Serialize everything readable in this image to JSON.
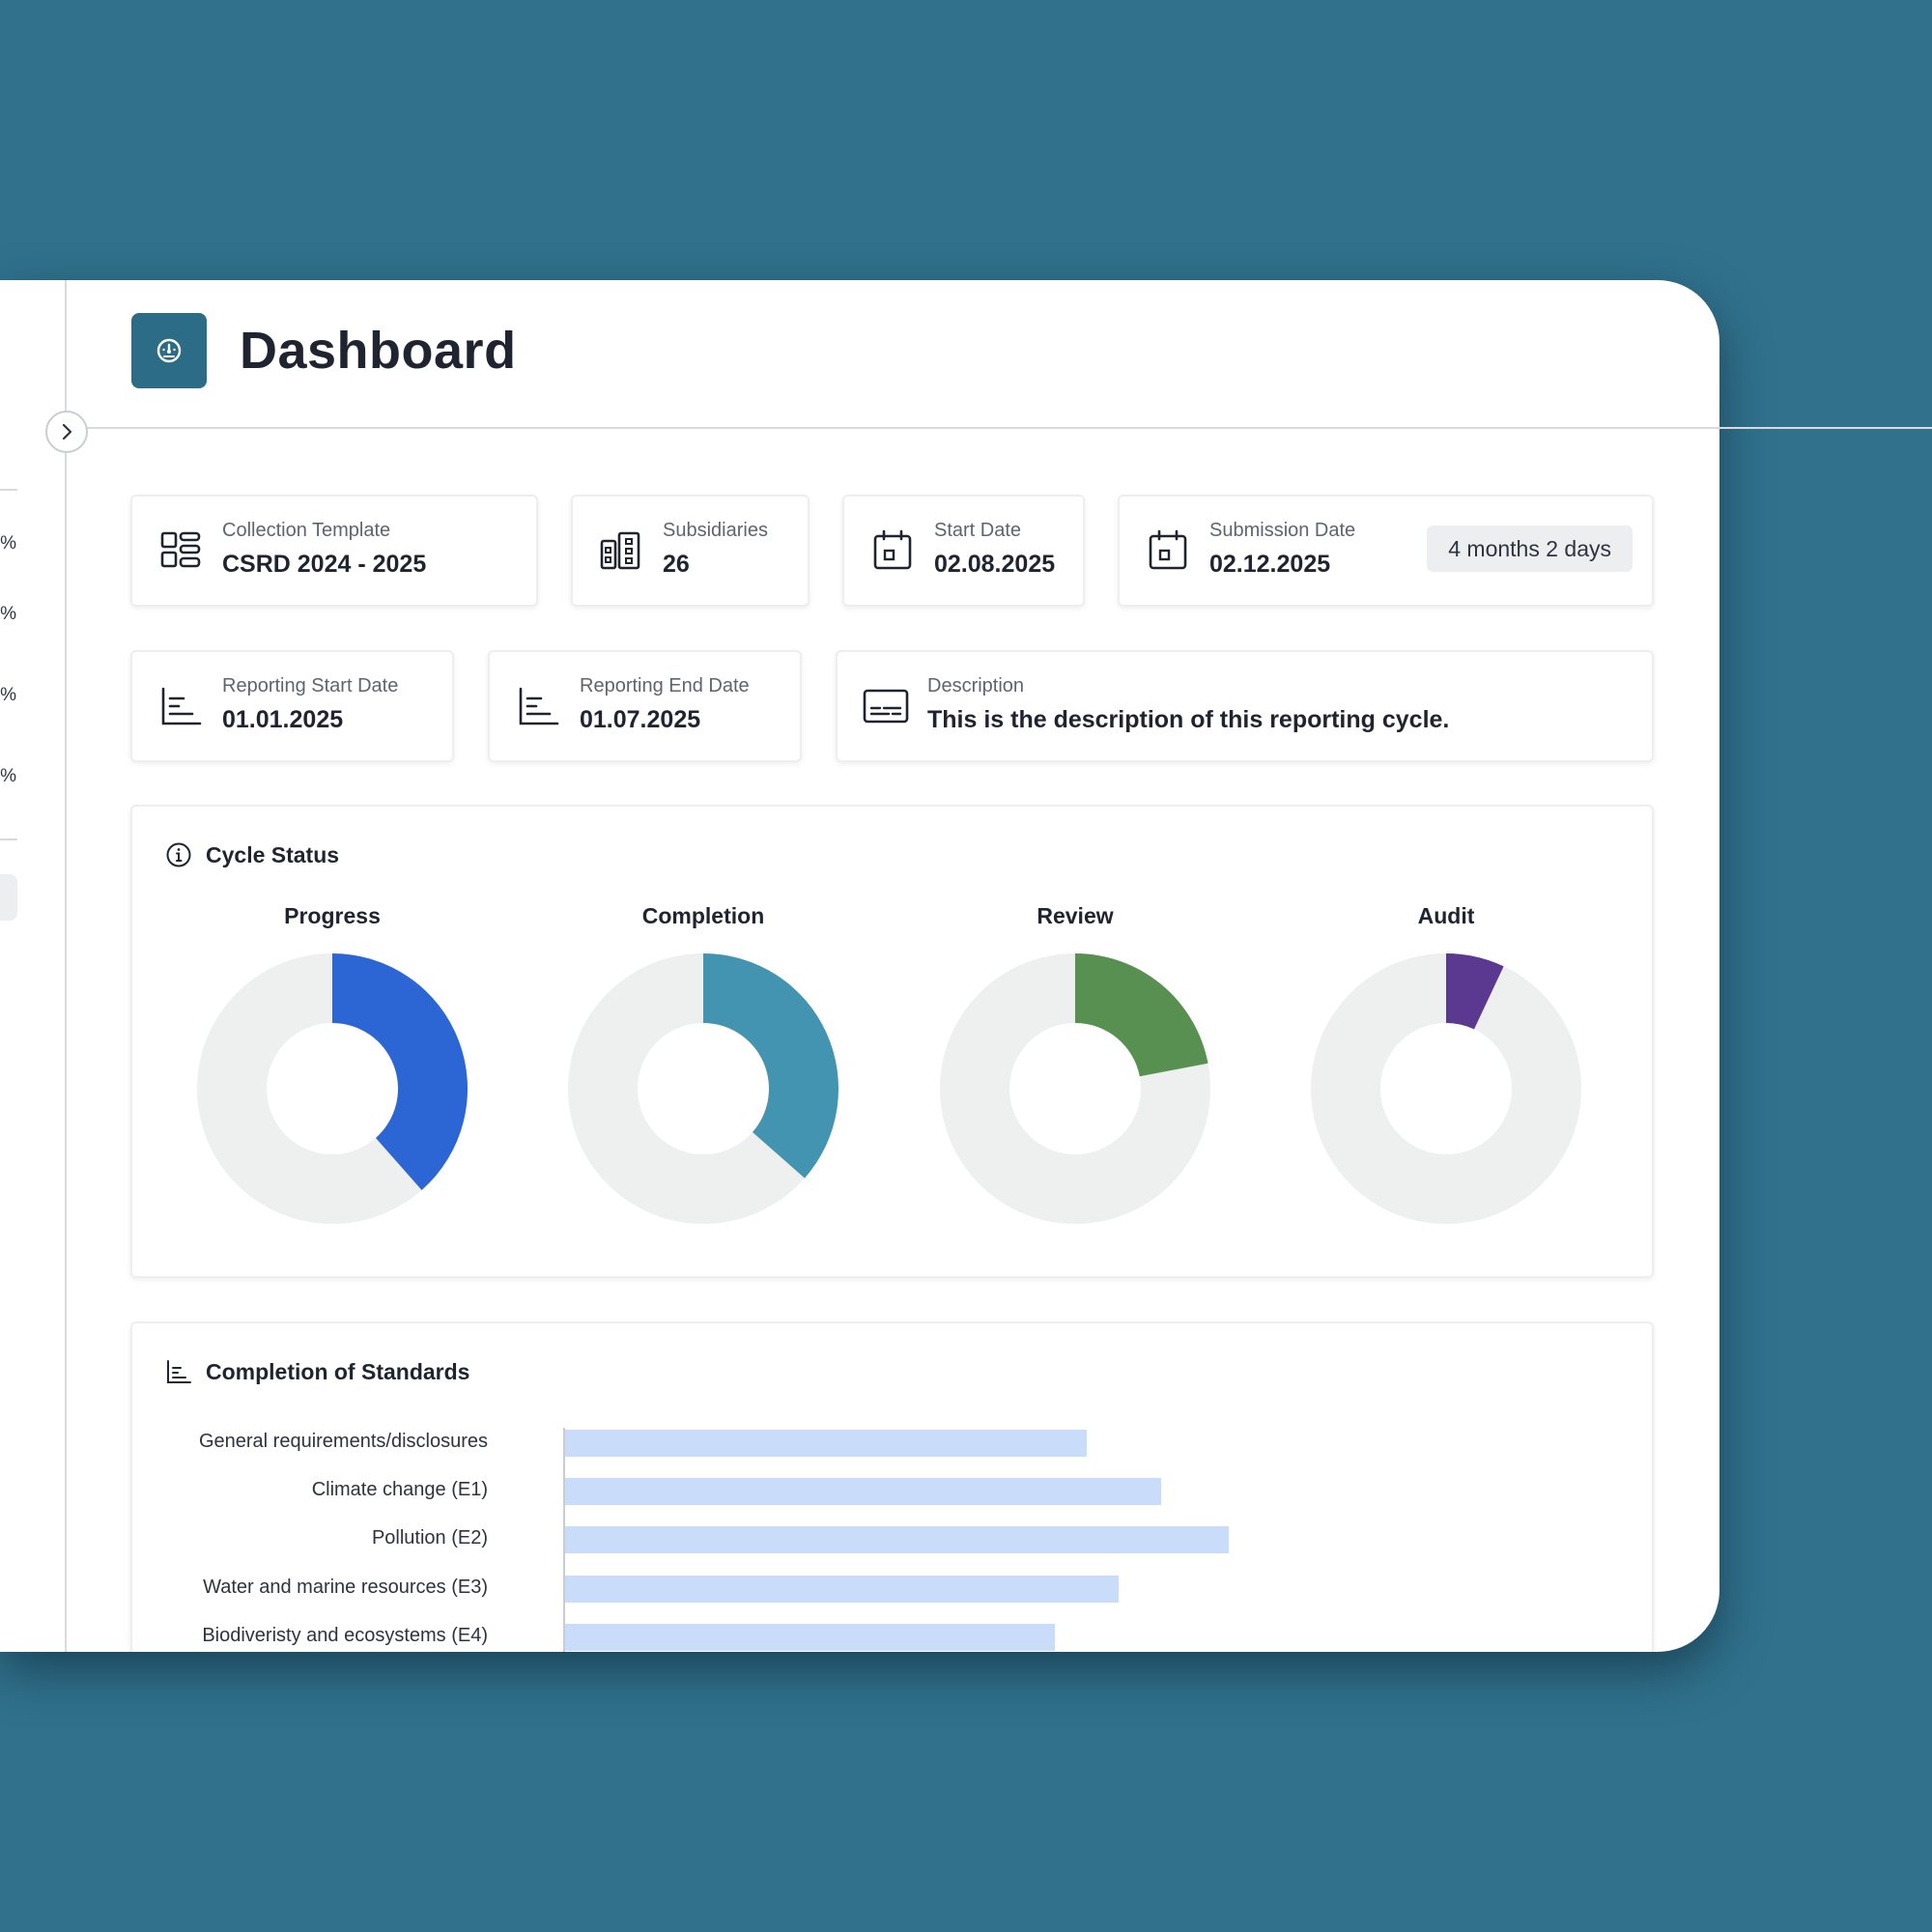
{
  "header": {
    "title": "Dashboard",
    "logo_icon": "speedometer-icon"
  },
  "sidebar": {
    "percent_labels": [
      "%",
      "%",
      "%",
      "%"
    ],
    "toggle_icon": "chevron-right-icon"
  },
  "info_cards": {
    "collection_template": {
      "label": "Collection Template",
      "value": "CSRD 2024 - 2025",
      "icon": "template-grid-icon"
    },
    "subsidiaries": {
      "label": "Subsidiaries",
      "value": "26",
      "icon": "buildings-icon"
    },
    "start_date": {
      "label": "Start Date",
      "value": "02.08.2025",
      "icon": "calendar-icon"
    },
    "submission_date": {
      "label": "Submission Date",
      "value": "02.12.2025",
      "badge": "4 months 2 days",
      "icon": "calendar-icon"
    },
    "reporting_start_date": {
      "label": "Reporting Start Date",
      "value": "01.01.2025",
      "icon": "bar-chart-icon"
    },
    "reporting_end_date": {
      "label": "Reporting End Date",
      "value": "01.07.2025",
      "icon": "bar-chart-icon"
    },
    "description": {
      "label": "Description",
      "value": "This is the description of this reporting cycle.",
      "icon": "subtitles-icon"
    }
  },
  "cycle_status": {
    "title": "Cycle Status",
    "icon": "info-circle-icon",
    "track_color": "#eeefef",
    "charts": [
      {
        "label": "Progress",
        "fraction": 0.385,
        "color": "#2c65d4"
      },
      {
        "label": "Completion",
        "fraction": 0.365,
        "color": "#4394b0"
      },
      {
        "label": "Review",
        "fraction": 0.22,
        "color": "#579050"
      },
      {
        "label": "Audit",
        "fraction": 0.07,
        "color": "#5b3990"
      }
    ]
  },
  "standards": {
    "title": "Completion of Standards",
    "icon": "bar-chart-icon"
  },
  "chart_data": [
    {
      "type": "pie",
      "title": "Progress",
      "slices": [
        {
          "name": "done",
          "value": 38.5,
          "color": "#2c65d4"
        },
        {
          "name": "remaining",
          "value": 61.5,
          "color": "#eeefef"
        }
      ]
    },
    {
      "type": "pie",
      "title": "Completion",
      "slices": [
        {
          "name": "done",
          "value": 36.5,
          "color": "#4394b0"
        },
        {
          "name": "remaining",
          "value": 63.5,
          "color": "#eeefef"
        }
      ]
    },
    {
      "type": "pie",
      "title": "Review",
      "slices": [
        {
          "name": "done",
          "value": 22,
          "color": "#579050"
        },
        {
          "name": "remaining",
          "value": 78,
          "color": "#eeefef"
        }
      ]
    },
    {
      "type": "pie",
      "title": "Audit",
      "slices": [
        {
          "name": "done",
          "value": 7,
          "color": "#5b3990"
        },
        {
          "name": "remaining",
          "value": 93,
          "color": "#eeefef"
        }
      ]
    },
    {
      "type": "bar",
      "orientation": "horizontal",
      "title": "Completion of Standards",
      "categories": [
        "General requirements/disclosures",
        "Climate change (E1)",
        "Pollution (E2)",
        "Water and marine resources (E3)",
        "Biodiveristy and ecosystems (E4)"
      ],
      "values": [
        54,
        61.7,
        68.7,
        57.3,
        50.7
      ],
      "xlim": [
        0,
        100
      ],
      "color": "#c9dcfa",
      "grid": false
    }
  ]
}
